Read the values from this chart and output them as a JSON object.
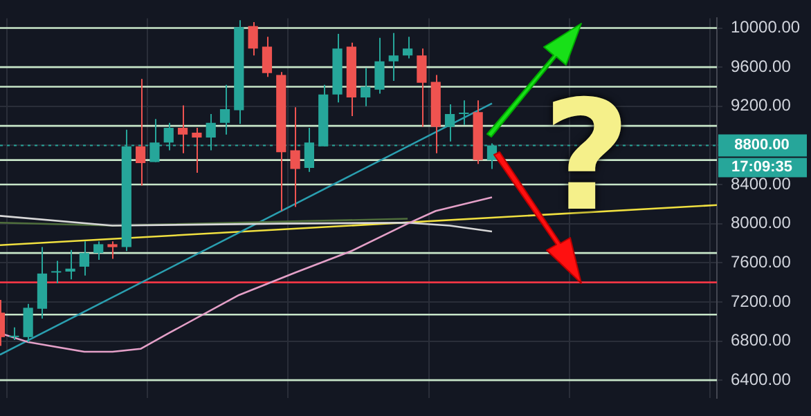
{
  "chart_data": {
    "type": "candlestick",
    "categories": [
      null,
      null,
      null,
      null,
      null,
      null,
      null,
      null,
      null,
      null,
      null,
      null,
      null,
      null,
      null,
      null,
      null,
      null,
      null,
      null,
      null,
      null,
      null,
      null,
      null,
      null,
      null,
      null,
      null,
      null,
      null,
      null,
      null,
      null,
      null,
      null,
      null,
      null,
      null,
      null,
      null,
      null,
      null,
      null,
      null,
      null,
      null,
      null,
      null,
      null,
      null,
      null
    ],
    "ohlc": [
      [
        7090,
        7220,
        6750,
        6840
      ],
      [
        6850,
        6940,
        6810,
        6840
      ],
      [
        6840,
        7180,
        6790,
        7140
      ],
      [
        7130,
        7760,
        7030,
        7490
      ],
      [
        7500,
        7620,
        7390,
        7510
      ],
      [
        7510,
        7730,
        7430,
        7540
      ],
      [
        7560,
        7820,
        7470,
        7700
      ],
      [
        7700,
        7820,
        7630,
        7790
      ],
      [
        7790,
        7820,
        7640,
        7760
      ],
      [
        7760,
        8960,
        7720,
        8790
      ],
      [
        8790,
        9480,
        8390,
        8620
      ],
      [
        8630,
        9070,
        8630,
        8830
      ],
      [
        8830,
        9030,
        8750,
        8980
      ],
      [
        8980,
        9210,
        8720,
        8910
      ],
      [
        8930,
        8980,
        8520,
        8880
      ],
      [
        8880,
        9120,
        8750,
        9030
      ],
      [
        9030,
        9420,
        8910,
        9170
      ],
      [
        9160,
        10080,
        9020,
        10010
      ],
      [
        10020,
        10060,
        9720,
        9790
      ],
      [
        9810,
        9910,
        9500,
        9540
      ],
      [
        9520,
        9550,
        8130,
        8730
      ],
      [
        8750,
        9190,
        8170,
        8560
      ],
      [
        8570,
        8980,
        8530,
        8830
      ],
      [
        8790,
        9420,
        8790,
        9320
      ],
      [
        9320,
        9940,
        9240,
        9790
      ],
      [
        9810,
        9850,
        9100,
        9290
      ],
      [
        9290,
        9590,
        9200,
        9400
      ],
      [
        9370,
        9900,
        9330,
        9660
      ],
      [
        9660,
        9950,
        9460,
        9720
      ],
      [
        9720,
        9910,
        9690,
        9790
      ],
      [
        9720,
        9790,
        8990,
        9440
      ],
      [
        9450,
        9520,
        8720,
        8990
      ],
      [
        8990,
        9220,
        8840,
        9120
      ],
      [
        9120,
        9260,
        9010,
        9130
      ],
      [
        9140,
        9260,
        8610,
        8650
      ],
      [
        8650,
        8820,
        8560,
        8800
      ],
      null,
      null,
      null,
      null,
      null,
      null,
      null,
      null,
      null,
      null,
      null,
      null,
      null,
      null,
      null,
      null
    ],
    "colors": [
      "#ef5350",
      "#26a69a",
      "#26a69a",
      "#26a69a",
      "#26a69a",
      "#26a69a",
      "#26a69a",
      "#26a69a",
      "#ef5350",
      "#26a69a",
      "#ef5350",
      "#26a69a",
      "#26a69a",
      "#ef5350",
      "#ef5350",
      "#26a69a",
      "#26a69a",
      "#26a69a",
      "#ef5350",
      "#ef5350",
      "#ef5350",
      "#ef5350",
      "#26a69a",
      "#26a69a",
      "#26a69a",
      "#ef5350",
      "#26a69a",
      "#26a69a",
      "#26a69a",
      "#26a69a",
      "#ef5350",
      "#ef5350",
      "#26a69a",
      "#26a69a",
      "#ef5350",
      "#26a69a",
      null,
      null,
      null,
      null,
      null,
      null,
      null,
      null,
      null,
      null,
      null,
      null,
      null,
      null,
      null,
      null
    ],
    "series": [
      {
        "type": "line",
        "color": "#e4a0c8",
        "values": [
          6880,
          null,
          6790,
          null,
          null,
          null,
          6690,
          null,
          6690,
          null,
          6720,
          null,
          6880,
          null,
          null,
          null,
          null,
          7270,
          null,
          null,
          null,
          7500,
          null,
          null,
          null,
          7720,
          null,
          null,
          null,
          8000,
          null,
          8130,
          null,
          null,
          null,
          8270,
          null,
          null,
          null,
          null,
          null,
          null,
          null,
          null,
          null,
          null,
          null,
          null,
          null,
          null,
          null,
          null
        ]
      },
      {
        "type": "line",
        "color": "#d8d8d8",
        "values": [
          8080,
          null,
          null,
          null,
          null,
          null,
          null,
          null,
          7980,
          null,
          null,
          null,
          null,
          null,
          null,
          null,
          null,
          null,
          null,
          null,
          8000,
          null,
          null,
          null,
          null,
          null,
          null,
          null,
          null,
          8010,
          null,
          null,
          7980,
          null,
          null,
          7920,
          null,
          null,
          null,
          null,
          null,
          null,
          null,
          null,
          null,
          null,
          null,
          null,
          null,
          null,
          null,
          null
        ]
      },
      {
        "type": "line",
        "color": "#4f6e3c",
        "values": [
          8010,
          null,
          null,
          null,
          null,
          null,
          null,
          null,
          7980,
          null,
          null,
          null,
          null,
          null,
          null,
          null,
          null,
          null,
          null,
          null,
          null,
          null,
          null,
          null,
          null,
          null,
          null,
          null,
          null,
          8050,
          null,
          null,
          null,
          null,
          null,
          null,
          null,
          null,
          null,
          null,
          null,
          null,
          null,
          null,
          null,
          null,
          null,
          null,
          null,
          null,
          null,
          null
        ]
      },
      {
        "type": "line",
        "color": "#2a9fb0",
        "values": [
          6660,
          null,
          null,
          null,
          null,
          null,
          null,
          null,
          null,
          null,
          null,
          null,
          null,
          null,
          null,
          null,
          null,
          null,
          null,
          null,
          null,
          null,
          null,
          null,
          null,
          null,
          null,
          null,
          null,
          null,
          null,
          null,
          null,
          null,
          null,
          9230,
          null,
          null,
          null,
          null,
          null,
          null,
          null,
          null,
          null,
          null,
          null,
          null,
          null,
          null,
          null,
          null
        ]
      },
      {
        "type": "line",
        "color": "#f0e040",
        "values": [
          7780,
          null,
          null,
          null,
          null,
          null,
          null,
          null,
          null,
          null,
          null,
          null,
          null,
          null,
          null,
          null,
          null,
          null,
          null,
          null,
          null,
          null,
          null,
          null,
          null,
          null,
          null,
          null,
          null,
          null,
          null,
          null,
          null,
          null,
          null,
          null,
          null,
          null,
          null,
          null,
          null,
          null,
          null,
          null,
          null,
          null,
          null,
          null,
          null,
          null,
          null,
          8190
        ]
      }
    ],
    "ylim": [
      6220,
      10100
    ],
    "yticks": [
      {
        "value": 6400,
        "label": "6400.00"
      },
      {
        "value": 6800,
        "label": "6800.00"
      },
      {
        "value": 7200,
        "label": "7200.00"
      },
      {
        "value": 7600,
        "label": "7600.00"
      },
      {
        "value": 8000,
        "label": "8000.00"
      },
      {
        "value": 8400,
        "label": "8400.00"
      },
      {
        "value": 8800,
        "label": null
      },
      {
        "value": 9200,
        "label": "9200.00"
      },
      {
        "value": 9600,
        "label": "9600.00"
      },
      {
        "value": 10000,
        "label": "10000.00"
      }
    ],
    "ref_lines": [
      {
        "axis": "y",
        "value": 10000,
        "color": "#c8e6c9"
      },
      {
        "axis": "y",
        "value": 9600,
        "color": "#c8e6c9"
      },
      {
        "axis": "y",
        "value": 9400,
        "color": "#c8e6c9"
      },
      {
        "axis": "y",
        "value": 9000,
        "color": "#c8e6c9"
      },
      {
        "axis": "y",
        "value": 8650,
        "color": "#c8e6c9"
      },
      {
        "axis": "y",
        "value": 8400,
        "color": "#c8e6c9"
      },
      {
        "axis": "y",
        "value": 7700,
        "color": "#c8e6c9"
      },
      {
        "axis": "y",
        "value": 7070,
        "color": "#c8e6c9"
      },
      {
        "axis": "y",
        "value": 6400,
        "color": "#c8e6c9"
      },
      {
        "axis": "y",
        "value": 7400,
        "color": "#f23645"
      },
      {
        "axis": "y",
        "value": 8800,
        "color": "#26a69a",
        "line_style": "dotted",
        "label": "8800.00"
      }
    ],
    "annotations": [
      "17:09:35",
      "?"
    ],
    "grid": true,
    "legend": false,
    "tick_labels": "y"
  }
}
